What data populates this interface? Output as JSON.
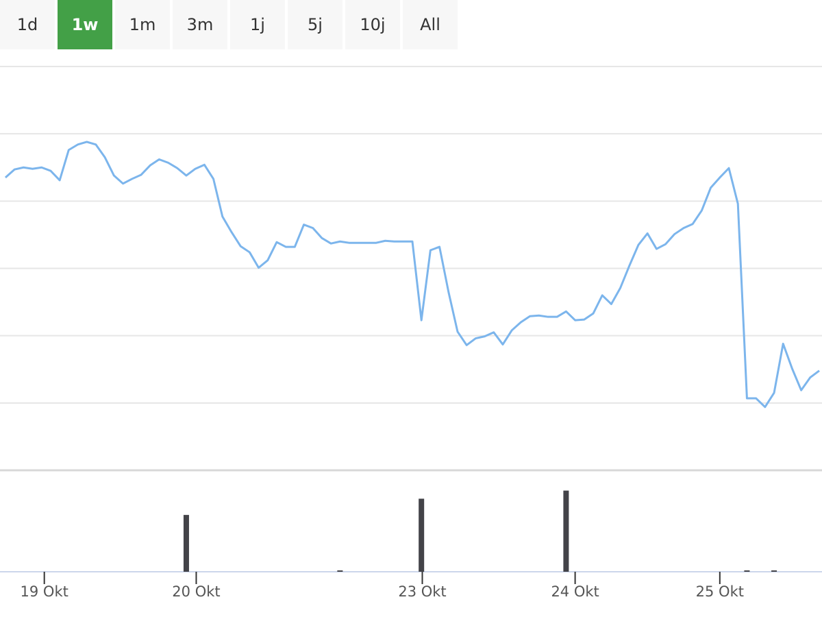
{
  "range_selector": {
    "buttons": [
      "1d",
      "1w",
      "1m",
      "3m",
      "1j",
      "5j",
      "10j",
      "All"
    ],
    "selected": 1
  },
  "chart_data": [
    {
      "type": "line",
      "color": "#7cb5ec",
      "grid": true,
      "xlim": [
        -0.6,
        90.3
      ],
      "ylim": [
        0,
        6
      ],
      "yticks": [
        0,
        1,
        2,
        3,
        4,
        5,
        6
      ],
      "values": [
        4.35,
        4.47,
        4.5,
        4.48,
        4.5,
        4.45,
        4.31,
        4.76,
        4.84,
        4.88,
        4.84,
        4.65,
        4.38,
        4.26,
        4.33,
        4.39,
        4.53,
        4.62,
        4.57,
        4.49,
        4.38,
        4.48,
        4.54,
        4.33,
        3.77,
        3.54,
        3.33,
        3.24,
        3.01,
        3.12,
        3.39,
        3.32,
        3.32,
        3.65,
        3.6,
        3.45,
        3.37,
        3.4,
        3.38,
        3.38,
        3.38,
        3.38,
        3.41,
        3.4,
        3.4,
        3.4,
        2.23,
        3.27,
        3.32,
        2.65,
        2.06,
        1.86,
        1.96,
        1.99,
        2.05,
        1.87,
        2.08,
        2.2,
        2.29,
        2.3,
        2.28,
        2.28,
        2.36,
        2.23,
        2.24,
        2.33,
        2.6,
        2.47,
        2.71,
        3.04,
        3.35,
        3.52,
        3.29,
        3.36,
        3.51,
        3.6,
        3.66,
        3.86,
        4.2,
        4.35,
        4.49,
        3.96,
        1.07,
        1.07,
        0.94,
        1.15,
        1.88,
        1.51,
        1.19,
        1.38,
        1.48
      ]
    },
    {
      "type": "bar",
      "color": "#434348",
      "xlim": [
        -0.6,
        90.3
      ],
      "ylim": [
        0,
        150
      ],
      "x": [
        20,
        37,
        46,
        62,
        82,
        85
      ],
      "values": [
        84,
        2,
        108,
        120,
        2,
        2
      ],
      "xticks": [
        {
          "value": 4.3,
          "label": "19 Okt"
        },
        {
          "value": 21.1,
          "label": "20 Okt"
        },
        {
          "value": 46.1,
          "label": "23 Okt"
        },
        {
          "value": 63.0,
          "label": "24 Okt"
        },
        {
          "value": 79.0,
          "label": "25 Okt"
        }
      ]
    }
  ]
}
